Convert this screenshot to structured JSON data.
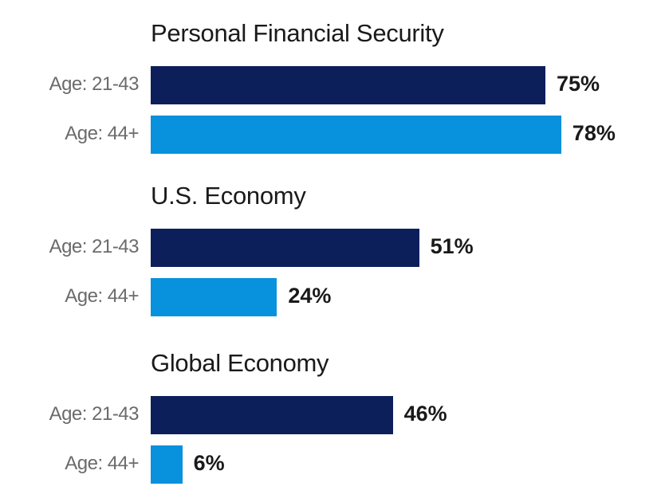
{
  "chart_data": {
    "type": "bar",
    "orientation": "horizontal",
    "xlim": [
      0,
      100
    ],
    "unit": "%",
    "colors": {
      "Age: 21-43": "#0c1f5b",
      "Age: 44+": "#0891dc"
    },
    "groups": [
      {
        "title": "Personal Financial Security",
        "bars": [
          {
            "label": "Age: 21-43",
            "value": 75,
            "value_label": "75%"
          },
          {
            "label": "Age: 44+",
            "value": 78,
            "value_label": "78%"
          }
        ]
      },
      {
        "title": "U.S. Economy",
        "bars": [
          {
            "label": "Age: 21-43",
            "value": 51,
            "value_label": "51%"
          },
          {
            "label": "Age: 44+",
            "value": 24,
            "value_label": "24%"
          }
        ]
      },
      {
        "title": "Global Economy",
        "bars": [
          {
            "label": "Age: 21-43",
            "value": 46,
            "value_label": "46%"
          },
          {
            "label": "Age: 44+",
            "value": 6,
            "value_label": "6%"
          }
        ]
      }
    ]
  }
}
